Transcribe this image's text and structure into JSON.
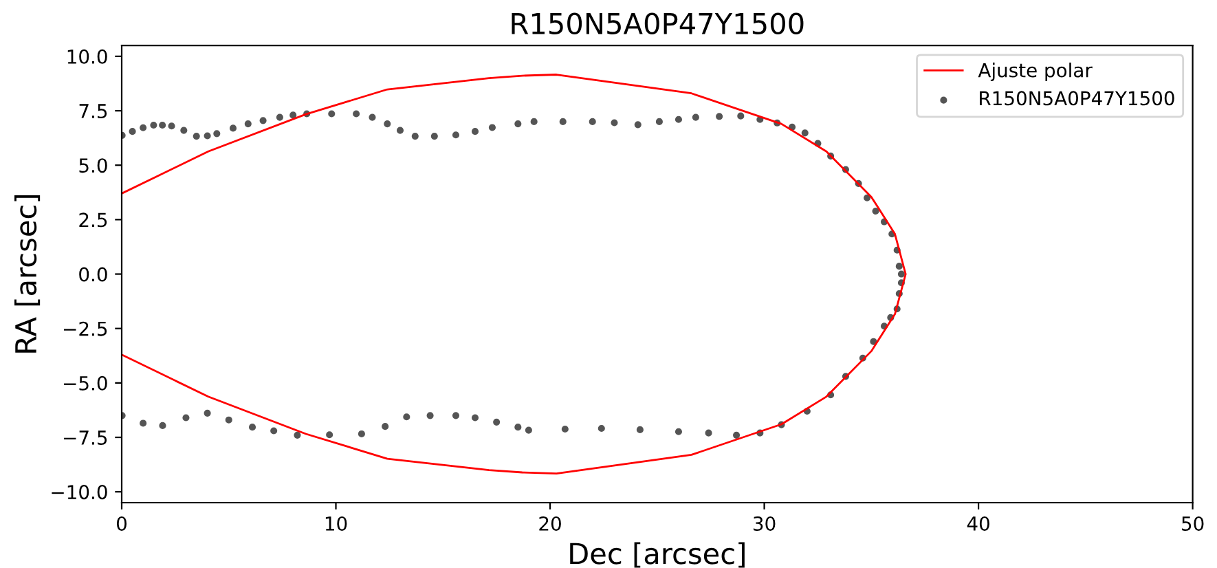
{
  "chart_data": {
    "type": "scatter",
    "title": "R150N5A0P47Y1500",
    "xlabel": "Dec [arcsec]",
    "ylabel": "RA [arcsec]",
    "series": [
      {
        "name": "Ajuste polar",
        "type": "line",
        "color": "#ff0000",
        "marker": "none",
        "x": [
          0,
          4.04,
          8.6,
          12.4,
          17.15,
          18.7,
          20.3,
          26.6,
          30.8,
          32.9,
          35.0,
          36.1,
          36.6,
          36.1,
          35.0,
          32.9,
          30.8,
          26.6,
          20.3,
          18.7,
          17.15,
          12.4,
          8.6,
          4.04,
          0
        ],
        "values": [
          3.7,
          5.63,
          7.34,
          8.48,
          9.0,
          9.11,
          9.16,
          8.3,
          6.9,
          5.63,
          3.54,
          1.84,
          0,
          -1.84,
          -3.54,
          -5.63,
          -6.9,
          -8.3,
          -9.16,
          -9.11,
          -9.0,
          -8.48,
          -7.34,
          -5.63,
          -3.7
        ]
      },
      {
        "name": "R150N5A0P47Y1500",
        "color": "#555555",
        "marker": "circle",
        "x": [
          0.02,
          0.5,
          1.0,
          1.49,
          1.9,
          2.33,
          2.9,
          3.49,
          4.0,
          4.44,
          5.2,
          5.9,
          6.6,
          7.38,
          8.0,
          8.64,
          9.8,
          10.95,
          11.7,
          12.4,
          13.0,
          13.7,
          14.6,
          15.6,
          16.5,
          17.3,
          18.5,
          19.25,
          20.6,
          21.98,
          23.0,
          24.1,
          25.1,
          26.0,
          26.8,
          27.9,
          28.9,
          29.8,
          30.6,
          31.3,
          31.9,
          32.5,
          33.1,
          33.8,
          34.4,
          34.8,
          35.2,
          35.6,
          35.96,
          36.2,
          36.3,
          36.4,
          36.4,
          36.3,
          36.2,
          35.9,
          35.6,
          35.1,
          34.6,
          33.8,
          33.1,
          32.0,
          30.8,
          29.8,
          28.7,
          27.4,
          26.0,
          24.2,
          22.4,
          20.7,
          19.0,
          18.5,
          17.5,
          16.5,
          15.6,
          14.4,
          13.3,
          12.3,
          11.2,
          9.7,
          8.2,
          7.1,
          6.1,
          5.0,
          4.0,
          3.0,
          1.91,
          1.0,
          0.02
        ],
        "values": [
          6.37,
          6.55,
          6.72,
          6.84,
          6.84,
          6.8,
          6.6,
          6.33,
          6.35,
          6.45,
          6.7,
          6.9,
          7.05,
          7.2,
          7.3,
          7.36,
          7.36,
          7.36,
          7.2,
          6.9,
          6.6,
          6.33,
          6.33,
          6.39,
          6.55,
          6.73,
          6.9,
          7.0,
          7.0,
          7.0,
          6.95,
          6.86,
          7.0,
          7.1,
          7.2,
          7.24,
          7.26,
          7.1,
          6.94,
          6.75,
          6.48,
          6.0,
          5.42,
          4.8,
          4.16,
          3.5,
          2.89,
          2.4,
          1.84,
          1.1,
          0.36,
          0,
          -0.4,
          -0.9,
          -1.6,
          -2.0,
          -2.39,
          -3.1,
          -3.86,
          -4.7,
          -5.55,
          -6.3,
          -6.92,
          -7.3,
          -7.4,
          -7.3,
          -7.24,
          -7.15,
          -7.09,
          -7.12,
          -7.17,
          -7.03,
          -6.8,
          -6.6,
          -6.5,
          -6.5,
          -6.56,
          -7.0,
          -7.34,
          -7.38,
          -7.4,
          -7.2,
          -7.03,
          -6.7,
          -6.39,
          -6.6,
          -6.96,
          -6.85,
          -6.5
        ]
      }
    ],
    "xlim": [
      0,
      50
    ],
    "ylim": [
      -10.5,
      10.5
    ],
    "xticks": [
      0,
      10,
      20,
      30,
      40,
      50
    ],
    "yticks": [
      {
        "value": -10,
        "label": "−10.0"
      },
      {
        "value": -7.5,
        "label": "−7.5"
      },
      {
        "value": -5,
        "label": "−5.0"
      },
      {
        "value": -2.5,
        "label": "−2.5"
      },
      {
        "value": 0,
        "label": "0.0"
      },
      {
        "value": 2.5,
        "label": "2.5"
      },
      {
        "value": 5,
        "label": "5.0"
      },
      {
        "value": 7.5,
        "label": "7.5"
      },
      {
        "value": 10,
        "label": "10.0"
      }
    ],
    "grid": false,
    "legend": "top right"
  }
}
